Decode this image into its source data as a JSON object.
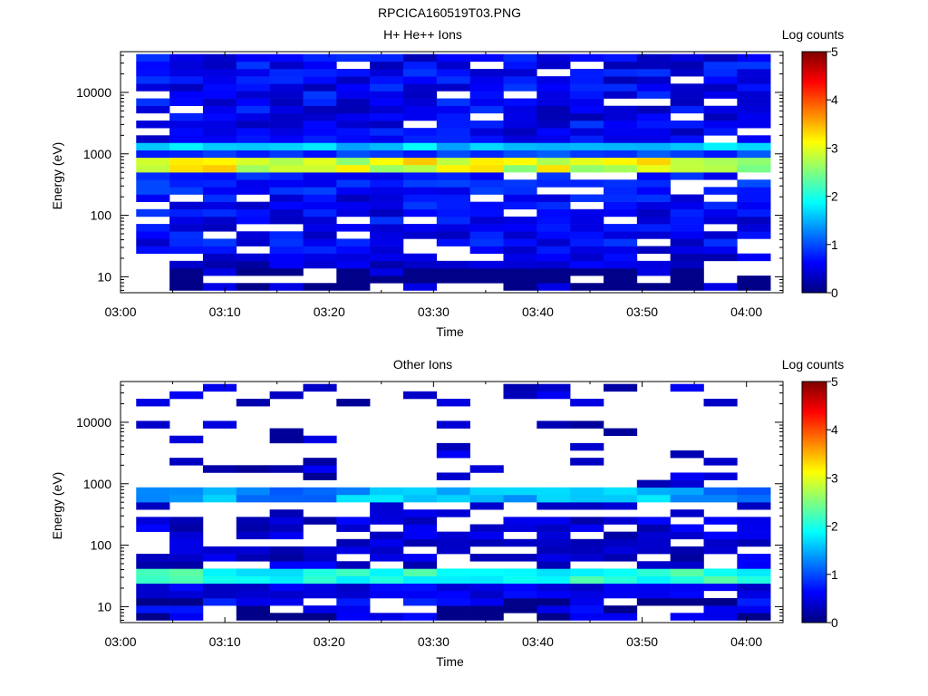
{
  "figure_title": "RPCICA160519T03.PNG",
  "chart_data": [
    {
      "type": "heatmap",
      "title": "H+ He++ Ions",
      "xlabel": "Time",
      "ylabel": "Energy (eV)",
      "xticks": [
        "03:00",
        "03:10",
        "03:20",
        "03:30",
        "03:40",
        "03:50",
        "04:00"
      ],
      "xlim_minutes": [
        0,
        63.5
      ],
      "yscale": "log",
      "ylim": [
        5.5,
        46000
      ],
      "yticks": [
        10,
        100,
        1000,
        10000
      ],
      "ytick_labels": [
        "10",
        "100",
        "1000",
        "10000"
      ],
      "colorbar": {
        "label": "Log counts",
        "min": 0,
        "max": 5,
        "ticks": [
          "0",
          "1",
          "2",
          "3",
          "4",
          "5"
        ]
      },
      "time_bin_start_minutes": 1.5,
      "time_bin_width_minutes": 3.2,
      "time_bins": 19,
      "energy_bins": 32,
      "energy_range_eV": [
        6,
        42000
      ],
      "features": [
        {
          "energy_eV": 650,
          "log_counts": 2.8,
          "description_label": ""
        },
        {
          "energy_eV": 1350,
          "log_counts": 1.7
        }
      ]
    },
    {
      "type": "heatmap",
      "title": "Other Ions",
      "xlabel": "Time",
      "ylabel": "Energy (eV)",
      "xticks": [
        "03:00",
        "03:10",
        "03:20",
        "03:30",
        "03:40",
        "03:50",
        "04:00"
      ],
      "xlim_minutes": [
        0,
        63.5
      ],
      "yscale": "log",
      "ylim": [
        5.5,
        46000
      ],
      "yticks": [
        10,
        100,
        1000,
        10000
      ],
      "ytick_labels": [
        "10",
        "100",
        "1000",
        "10000"
      ],
      "colorbar": {
        "label": "Log counts",
        "min": 0,
        "max": 5,
        "ticks": [
          "0",
          "1",
          "2",
          "3",
          "4",
          "5"
        ]
      },
      "time_bin_start_minutes": 1.5,
      "time_bin_width_minutes": 3.2,
      "time_bins": 19,
      "energy_bins": 32,
      "energy_range_eV": [
        6,
        42000
      ],
      "features": [
        {
          "energy_eV": 650,
          "log_counts": 1.5
        },
        {
          "energy_eV": 33,
          "log_counts": 2.2
        }
      ]
    }
  ],
  "colors": {
    "colormap": [
      "#00007f",
      "#0000ff",
      "#007fff",
      "#00ffff",
      "#7fff7f",
      "#ffff00",
      "#ff7f00",
      "#ff0000",
      "#7f0000"
    ],
    "axis": "#000000",
    "background": "#ffffff"
  }
}
